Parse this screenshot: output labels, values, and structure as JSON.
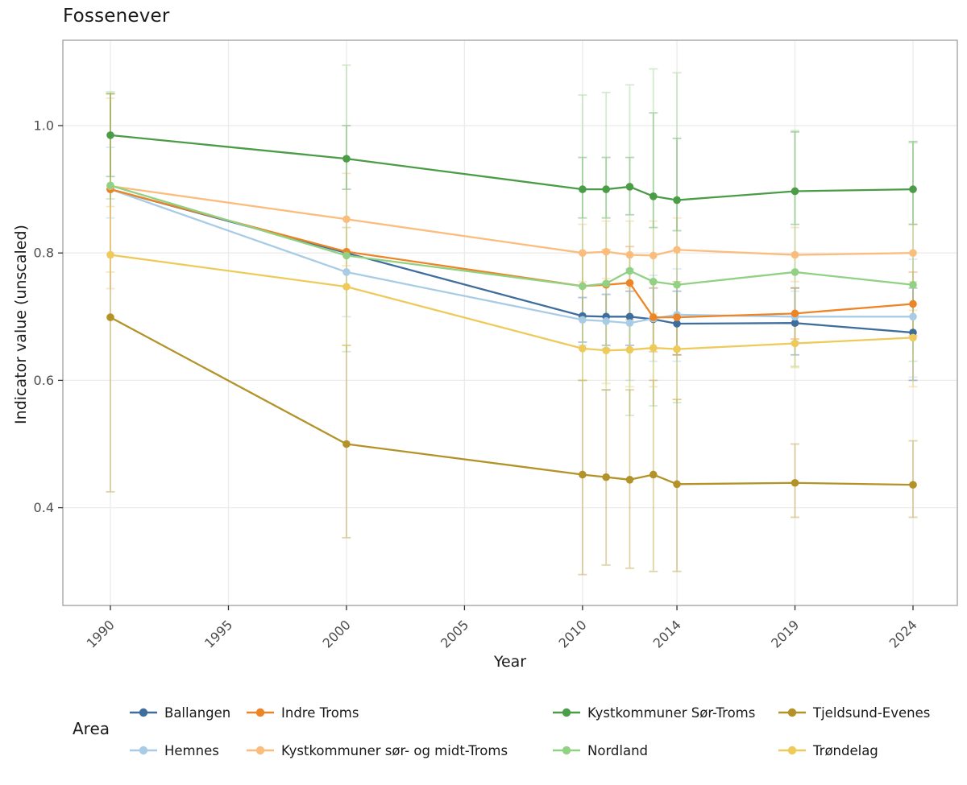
{
  "chart_data": {
    "type": "line",
    "title": "Fossenever",
    "xlabel": "Year",
    "ylabel": "Indicator value (unscaled)",
    "legend_title": "Area",
    "legend_position": "bottom",
    "grid": true,
    "x_ticks": [
      1990,
      1995,
      2000,
      2005,
      2010,
      2014,
      2019,
      2024
    ],
    "y_ticks": [
      0.4,
      0.6,
      0.8,
      1.0
    ],
    "xlim": [
      1988,
      2026
    ],
    "ylim": [
      0.25,
      1.13
    ],
    "x": [
      1990,
      2000,
      2010,
      2011,
      2012,
      2013,
      2014,
      2019,
      2024
    ],
    "series": [
      {
        "name": "Ballangen",
        "color": "#3f6e9c",
        "values": [
          0.9,
          0.8,
          0.701,
          0.7,
          0.7,
          0.696,
          0.689,
          0.69,
          0.675
        ],
        "error_lo": [
          null,
          null,
          0.66,
          0.655,
          0.655,
          0.65,
          0.64,
          0.64,
          0.6
        ],
        "error_hi": [
          null,
          null,
          0.73,
          0.735,
          0.74,
          0.745,
          0.74,
          0.745,
          0.745
        ]
      },
      {
        "name": "Hemnes",
        "color": "#a8cce5",
        "values": [
          0.9,
          0.77,
          0.695,
          0.693,
          0.69,
          0.697,
          0.703,
          0.7,
          0.7
        ],
        "error_lo": [
          0.855,
          0.7,
          0.655,
          0.65,
          0.6,
          0.63,
          0.63,
          0.66,
          0.605
        ],
        "error_hi": [
          0.966,
          0.84,
          0.73,
          0.735,
          0.775,
          0.765,
          0.775,
          0.74,
          0.79
        ]
      },
      {
        "name": "Indre Troms",
        "color": "#ed8426",
        "values": [
          0.9,
          0.802,
          0.748,
          0.75,
          0.753,
          0.699,
          0.699,
          0.705,
          0.72
        ],
        "error_lo": [
          null,
          null,
          0.7,
          0.7,
          0.695,
          0.645,
          0.64,
          0.665,
          0.67
        ],
        "error_hi": [
          null,
          null,
          0.8,
          0.805,
          0.81,
          0.755,
          0.755,
          0.745,
          0.77
        ]
      },
      {
        "name": "Kystkommuner sør- og midt-Troms",
        "color": "#fabd7d",
        "values": [
          0.905,
          0.853,
          0.8,
          0.802,
          0.797,
          0.796,
          0.805,
          0.797,
          0.8
        ],
        "error_lo": [
          0.744,
          0.78,
          0.755,
          0.76,
          0.745,
          0.745,
          0.75,
          0.755,
          0.755
        ],
        "error_hi": [
          1.043,
          0.925,
          0.845,
          0.85,
          0.85,
          0.85,
          0.855,
          0.84,
          0.845
        ]
      },
      {
        "name": "Kystkommuner Sør-Troms",
        "color": "#4b9c46",
        "values": [
          0.985,
          0.948,
          0.9,
          0.9,
          0.904,
          0.889,
          0.883,
          0.897,
          0.9
        ],
        "error_lo": [
          0.92,
          0.9,
          0.855,
          0.855,
          0.86,
          0.84,
          0.835,
          0.845,
          0.845
        ],
        "error_hi": [
          1.05,
          1.0,
          0.95,
          0.95,
          0.95,
          1.02,
          0.98,
          0.99,
          0.975
        ]
      },
      {
        "name": "Nordland",
        "color": "#90d183",
        "values": [
          0.906,
          0.796,
          0.748,
          0.752,
          0.772,
          0.755,
          0.75,
          0.77,
          0.75
        ],
        "error_lo": [
          0.885,
          0.645,
          0.6,
          0.585,
          0.545,
          0.56,
          0.565,
          0.622,
          0.63
        ],
        "error_hi": [
          1.053,
          1.095,
          1.048,
          1.052,
          1.064,
          1.089,
          1.083,
          0.992,
          0.973
        ]
      },
      {
        "name": "Tjeldsund-Evenes",
        "color": "#b39227",
        "values": [
          0.699,
          0.5,
          0.452,
          0.448,
          0.444,
          0.452,
          0.437,
          0.439,
          0.436
        ],
        "error_lo": [
          0.425,
          0.353,
          0.295,
          0.31,
          0.305,
          0.3,
          0.3,
          0.385,
          0.385
        ],
        "error_hi": [
          1.05,
          0.655,
          0.6,
          0.585,
          0.585,
          0.6,
          0.57,
          0.5,
          0.505
        ]
      },
      {
        "name": "Trøndelag",
        "color": "#eeca5b",
        "values": [
          0.797,
          0.747,
          0.65,
          0.647,
          0.648,
          0.651,
          0.649,
          0.658,
          0.667
        ],
        "error_lo": [
          0.77,
          0.655,
          0.6,
          0.595,
          0.59,
          0.59,
          0.57,
          0.62,
          0.59
        ],
        "error_hi": [
          0.873,
          0.84,
          0.7,
          0.7,
          0.7,
          0.705,
          0.7,
          0.7,
          0.71
        ]
      }
    ],
    "style": {
      "grid_color": "#ebebeb",
      "panel_border_color": "#a6a6a6",
      "tick_color": "#333333",
      "tick_label_color": "#4d4d4d",
      "text_color": "#1a1a1a",
      "errorbar_opacity": 0.4
    }
  }
}
